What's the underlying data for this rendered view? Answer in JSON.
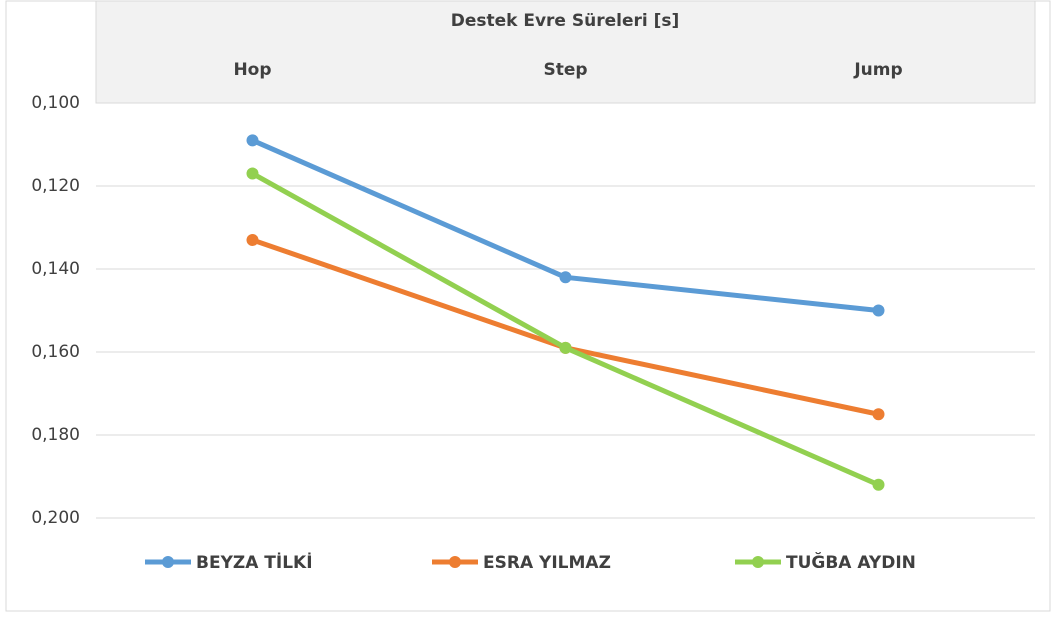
{
  "chart_data": {
    "type": "line",
    "title": "Destek Evre Süreleri  [s]",
    "categories": [
      "Hop",
      "Step",
      "Jump"
    ],
    "series": [
      {
        "name": "BEYZA TİLKİ",
        "color": "#5b9bd5",
        "values": [
          0.109,
          0.142,
          0.15
        ]
      },
      {
        "name": "ESRA YILMAZ",
        "color": "#ed7d31",
        "values": [
          0.133,
          0.159,
          0.175
        ]
      },
      {
        "name": "TUĞBA AYDIN",
        "color": "#92d050",
        "values": [
          0.117,
          0.159,
          0.192
        ]
      }
    ],
    "ylim": [
      0.1,
      0.2
    ],
    "y_inverted": true,
    "yticks": [
      {
        "value": 0.1,
        "label": "0,100"
      },
      {
        "value": 0.12,
        "label": "0,120"
      },
      {
        "value": 0.14,
        "label": "0,140"
      },
      {
        "value": 0.16,
        "label": "0,160"
      },
      {
        "value": 0.18,
        "label": "0,180"
      },
      {
        "value": 0.2,
        "label": "0,200"
      }
    ],
    "grid": true,
    "legend": "bottom"
  }
}
